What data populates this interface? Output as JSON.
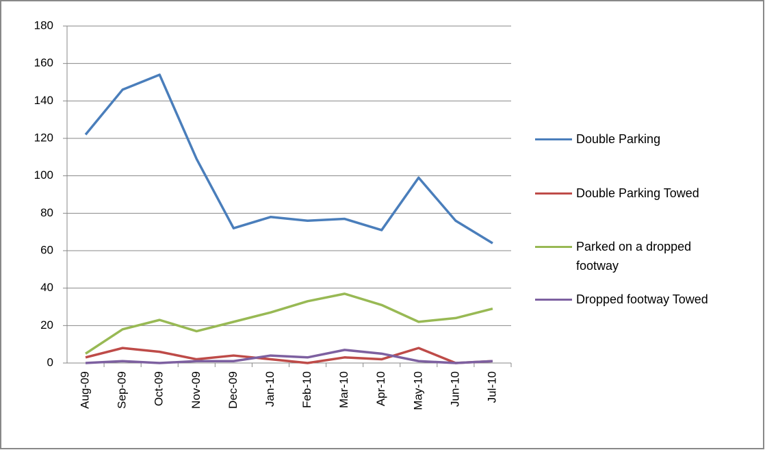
{
  "chart_data": {
    "type": "line",
    "categories": [
      "Aug-09",
      "Sep-09",
      "Oct-09",
      "Nov-09",
      "Dec-09",
      "Jan-10",
      "Feb-10",
      "Mar-10",
      "Apr-10",
      "May-10",
      "Jun-10",
      "Jul-10"
    ],
    "series": [
      {
        "name": "Double Parking",
        "color": "#4a7ebb",
        "values": [
          122,
          146,
          154,
          109,
          72,
          78,
          76,
          77,
          71,
          99,
          76,
          64
        ]
      },
      {
        "name": "Double Parking Towed",
        "color": "#be4b48",
        "values": [
          3,
          8,
          6,
          2,
          4,
          2,
          0,
          3,
          2,
          8,
          0,
          1
        ]
      },
      {
        "name": "Parked on a dropped footway",
        "color": "#98b954",
        "values": [
          5,
          18,
          23,
          17,
          22,
          27,
          33,
          37,
          31,
          22,
          24,
          29
        ]
      },
      {
        "name": "Dropped footway Towed",
        "color": "#7d60a0",
        "values": [
          0,
          1,
          0,
          1,
          1,
          4,
          3,
          7,
          5,
          1,
          0,
          1
        ]
      }
    ],
    "ylim": [
      0,
      180
    ],
    "yticks": [
      0,
      20,
      40,
      60,
      80,
      100,
      120,
      140,
      160,
      180
    ],
    "grid": true,
    "legend": "right"
  }
}
